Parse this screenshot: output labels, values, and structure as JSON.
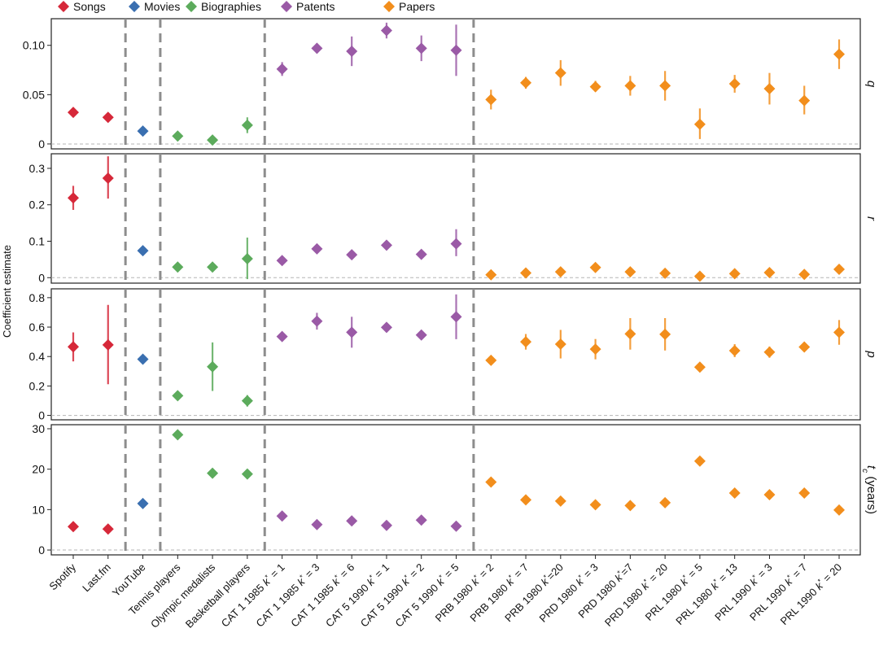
{
  "chart_data": {
    "type": "scatter",
    "ylabel": "Coefficient estimate",
    "legend": [
      {
        "name": "Songs",
        "color": "#d62839"
      },
      {
        "name": "Movies",
        "color": "#3a6fb0"
      },
      {
        "name": "Biographies",
        "color": "#5cab5c"
      },
      {
        "name": "Patents",
        "color": "#9a5aa6"
      },
      {
        "name": "Papers",
        "color": "#f28e1c"
      }
    ],
    "group_colors": {
      "Songs": "#d62839",
      "Movies": "#3a6fb0",
      "Biographies": "#5cab5c",
      "Patents": "#9a5aa6",
      "Papers": "#f28e1c"
    },
    "categories": [
      {
        "label": "Spotify",
        "group": "Songs"
      },
      {
        "label": "Last.fm",
        "group": "Songs"
      },
      {
        "label": "YouTube",
        "group": "Movies"
      },
      {
        "label": "Tennis players",
        "group": "Biographies"
      },
      {
        "label": "Olympic medalists",
        "group": "Biographies"
      },
      {
        "label": "Basketball players",
        "group": "Biographies"
      },
      {
        "label": "CAT 1 1985 k* = 1",
        "group": "Patents"
      },
      {
        "label": "CAT 1 1985 k* = 3",
        "group": "Patents"
      },
      {
        "label": "CAT 1 1985 k* = 6",
        "group": "Patents"
      },
      {
        "label": "CAT 5 1990 k* = 1",
        "group": "Patents"
      },
      {
        "label": "CAT 5 1990 k* = 2",
        "group": "Patents"
      },
      {
        "label": "CAT 5 1990 k* = 5",
        "group": "Patents"
      },
      {
        "label": "PRB 1980 k* = 2",
        "group": "Papers"
      },
      {
        "label": "PRB 1980 k* = 7",
        "group": "Papers"
      },
      {
        "label": "PRB 1980 k*=20",
        "group": "Papers"
      },
      {
        "label": "PRD 1980 k* = 3",
        "group": "Papers"
      },
      {
        "label": "PRD 1980 k*=7",
        "group": "Papers"
      },
      {
        "label": "PRD 1980 k* = 20",
        "group": "Papers"
      },
      {
        "label": "PRL 1980 k* = 5",
        "group": "Papers"
      },
      {
        "label": "PRL 1980 k* = 13",
        "group": "Papers"
      },
      {
        "label": "PRL 1990 k* = 3",
        "group": "Papers"
      },
      {
        "label": "PRL 1990 k* = 7",
        "group": "Papers"
      },
      {
        "label": "PRL 1990 k* = 20",
        "group": "Papers"
      }
    ],
    "separators_after_index": [
      1,
      2,
      5,
      11
    ],
    "panels": [
      {
        "label": "q",
        "ylim": [
          -0.005,
          0.127
        ],
        "yticks": [
          0,
          0.05,
          0.1
        ],
        "tick_labels": [
          "0",
          "0.05",
          "0.10"
        ],
        "values": [
          0.032,
          0.027,
          0.013,
          0.008,
          0.004,
          0.019,
          0.076,
          0.097,
          0.094,
          0.115,
          0.097,
          0.095,
          0.045,
          0.062,
          0.072,
          0.058,
          0.059,
          0.059,
          0.02,
          0.061,
          0.056,
          0.044,
          0.091
        ],
        "err_low": [
          0.03,
          0.025,
          0.011,
          0.004,
          0.002,
          0.011,
          0.069,
          0.092,
          0.079,
          0.107,
          0.084,
          0.069,
          0.035,
          0.056,
          0.059,
          0.053,
          0.049,
          0.044,
          0.005,
          0.052,
          0.04,
          0.03,
          0.076
        ],
        "err_high": [
          0.034,
          0.029,
          0.015,
          0.012,
          0.006,
          0.027,
          0.083,
          0.102,
          0.109,
          0.123,
          0.11,
          0.121,
          0.055,
          0.068,
          0.085,
          0.064,
          0.069,
          0.074,
          0.036,
          0.07,
          0.072,
          0.059,
          0.106
        ]
      },
      {
        "label": "r",
        "ylim": [
          -0.015,
          0.34
        ],
        "yticks": [
          0,
          0.1,
          0.2,
          0.3
        ],
        "tick_labels": [
          "0",
          "0.1",
          "0.2",
          "0.3"
        ],
        "values": [
          0.219,
          0.273,
          0.074,
          0.029,
          0.029,
          0.052,
          0.047,
          0.079,
          0.063,
          0.089,
          0.064,
          0.093,
          0.008,
          0.013,
          0.016,
          0.028,
          0.016,
          0.012,
          0.004,
          0.011,
          0.014,
          0.009,
          0.023
        ],
        "err_low": [
          0.186,
          0.217,
          0.07,
          0.024,
          0.023,
          -0.004,
          0.04,
          0.071,
          0.051,
          0.082,
          0.058,
          0.059,
          0.003,
          0.006,
          0.008,
          0.022,
          0.009,
          0.005,
          0.0,
          0.004,
          0.008,
          0.003,
          0.016
        ],
        "err_high": [
          0.252,
          0.333,
          0.078,
          0.034,
          0.035,
          0.11,
          0.054,
          0.087,
          0.075,
          0.096,
          0.07,
          0.133,
          0.013,
          0.02,
          0.024,
          0.034,
          0.023,
          0.019,
          0.009,
          0.018,
          0.02,
          0.015,
          0.03
        ]
      },
      {
        "label": "p",
        "ylim": [
          -0.03,
          0.86
        ],
        "yticks": [
          0,
          0.2,
          0.4,
          0.6,
          0.8
        ],
        "tick_labels": [
          "0",
          "0.2",
          "0.4",
          "0.6",
          "0.8"
        ],
        "values": [
          0.466,
          0.479,
          0.382,
          0.134,
          0.331,
          0.099,
          0.536,
          0.64,
          0.565,
          0.598,
          0.546,
          0.67,
          0.374,
          0.5,
          0.484,
          0.45,
          0.554,
          0.551,
          0.328,
          0.44,
          0.43,
          0.465,
          0.564
        ],
        "err_low": [
          0.367,
          0.212,
          0.368,
          0.113,
          0.166,
          0.06,
          0.507,
          0.583,
          0.46,
          0.58,
          0.53,
          0.518,
          0.344,
          0.447,
          0.387,
          0.381,
          0.447,
          0.441,
          0.307,
          0.396,
          0.392,
          0.443,
          0.48
        ],
        "err_high": [
          0.564,
          0.751,
          0.397,
          0.155,
          0.496,
          0.138,
          0.565,
          0.697,
          0.67,
          0.616,
          0.562,
          0.822,
          0.404,
          0.553,
          0.581,
          0.519,
          0.661,
          0.661,
          0.349,
          0.484,
          0.468,
          0.487,
          0.648
        ]
      },
      {
        "label": "t_c (years)",
        "label_main": "t",
        "label_sub": "c",
        "label_rest": " (years)",
        "ylim": [
          -1.2,
          31.0
        ],
        "yticks": [
          0,
          10,
          20,
          30
        ],
        "tick_labels": [
          "0",
          "10",
          "20",
          "30"
        ],
        "values": [
          5.8,
          5.2,
          11.5,
          28.5,
          19.0,
          18.8,
          8.4,
          6.3,
          7.2,
          6.1,
          7.4,
          5.9,
          16.8,
          12.4,
          12.1,
          11.2,
          11.0,
          11.7,
          22.0,
          14.1,
          13.7,
          14.1,
          9.9
        ],
        "err_low": [
          5.4,
          4.8,
          11.1,
          28.0,
          18.6,
          18.4,
          8.0,
          5.9,
          6.8,
          5.7,
          7.0,
          5.5,
          16.3,
          11.9,
          11.6,
          10.7,
          10.5,
          11.2,
          21.5,
          13.6,
          13.2,
          13.6,
          9.4
        ],
        "err_high": [
          6.2,
          5.6,
          11.9,
          29.0,
          19.4,
          19.2,
          8.8,
          6.7,
          7.6,
          6.5,
          7.8,
          6.3,
          17.3,
          12.9,
          12.6,
          11.7,
          11.5,
          12.2,
          22.5,
          14.6,
          14.2,
          14.6,
          10.4
        ]
      }
    ]
  }
}
